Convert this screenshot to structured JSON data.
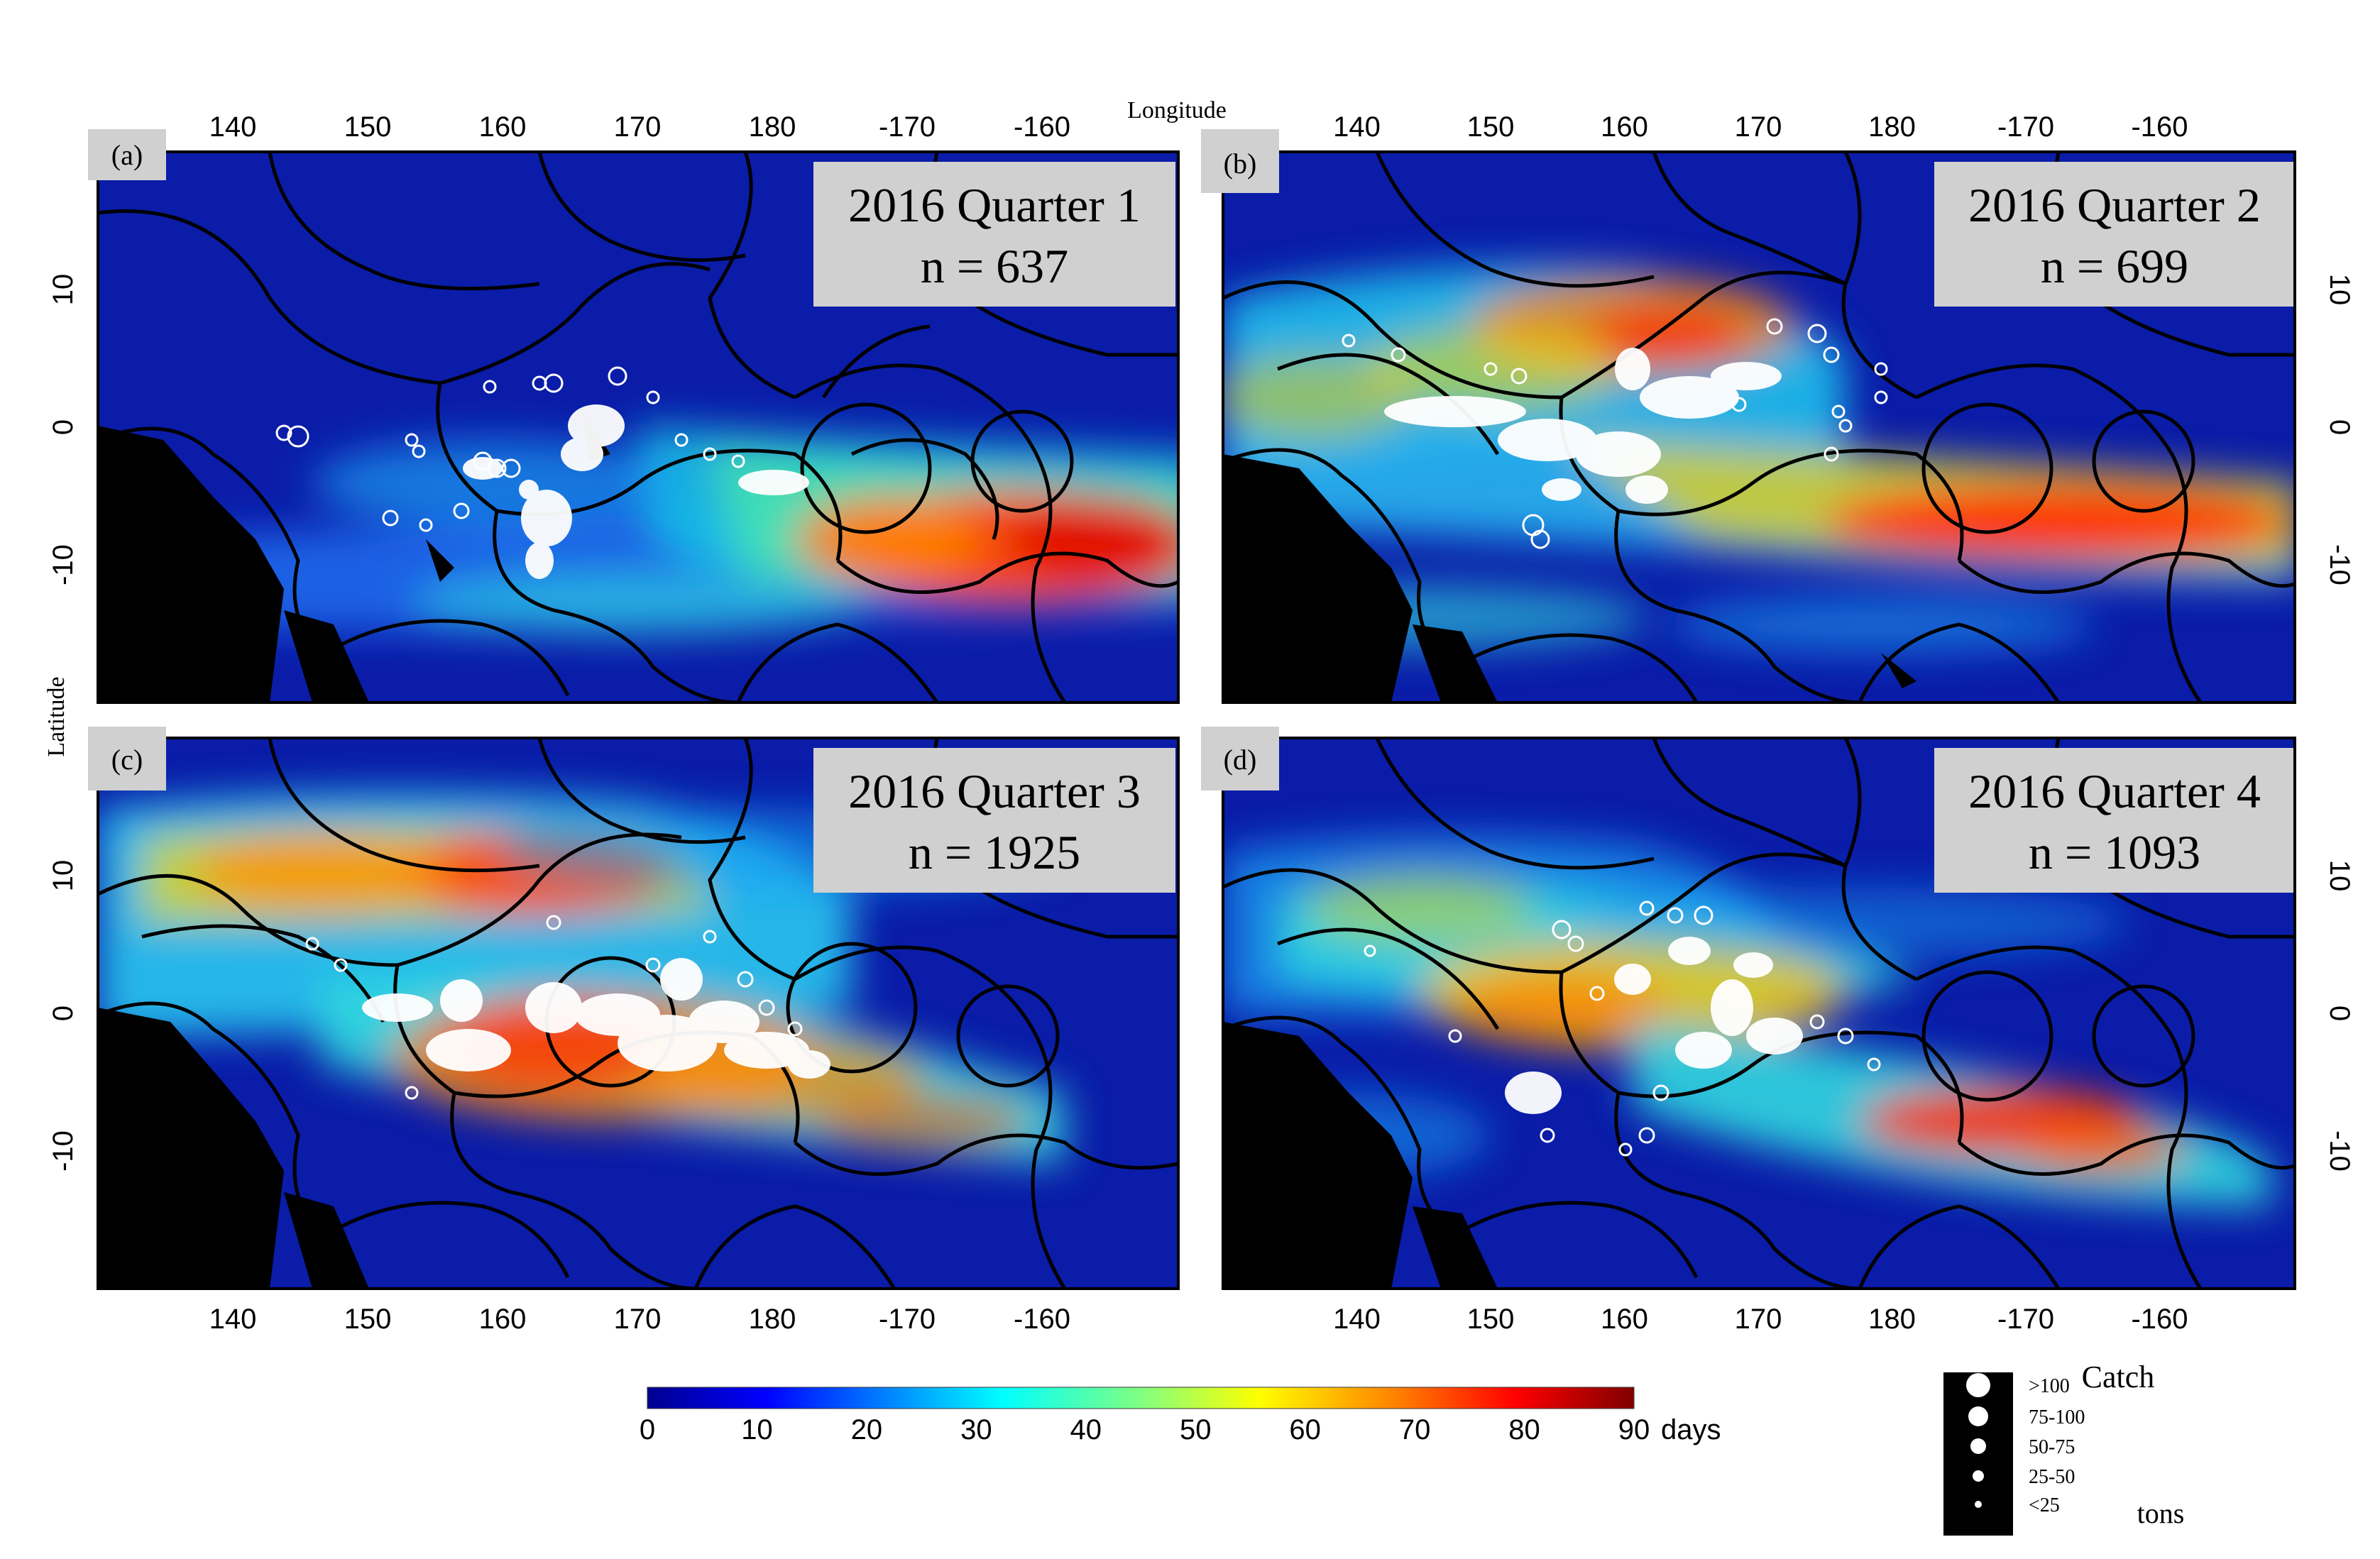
{
  "figure": {
    "x_axis_title": "Longitude",
    "y_axis_title": "Latitude",
    "longitude_ticks": [
      "140",
      "150",
      "160",
      "170",
      "180",
      "-170",
      "-160"
    ],
    "latitude_ticks": [
      "10",
      "0",
      "-10"
    ]
  },
  "panels": [
    {
      "label": "(a)",
      "title": "2016 Quarter 1",
      "count": "n = 637"
    },
    {
      "label": "(b)",
      "title": "2016 Quarter 2",
      "count": "n = 699"
    },
    {
      "label": "(c)",
      "title": "2016 Quarter 3",
      "count": "n = 1925"
    },
    {
      "label": "(d)",
      "title": "2016 Quarter 4",
      "count": "n = 1093"
    }
  ],
  "colorbar": {
    "ticks": [
      "0",
      "10",
      "20",
      "30",
      "40",
      "50",
      "60",
      "70",
      "80",
      "90"
    ],
    "unit": "days",
    "min": 0,
    "max": 90,
    "colors": [
      "#00008f",
      "#0000ff",
      "#0080ff",
      "#00ffff",
      "#80ff80",
      "#ffff00",
      "#ff8000",
      "#ff0000",
      "#800000"
    ]
  },
  "catch_legend": {
    "title": "Catch",
    "unit": "tons",
    "classes": [
      ">100",
      "75-100",
      "50-75",
      "25-50",
      "<25"
    ]
  },
  "colors": {
    "ocean_background": "#0a1ca8",
    "land": "#000000",
    "eez_boundaries": "#000000",
    "catch_markers": "#ffffff",
    "annotation_box": "#d0d0d0"
  }
}
